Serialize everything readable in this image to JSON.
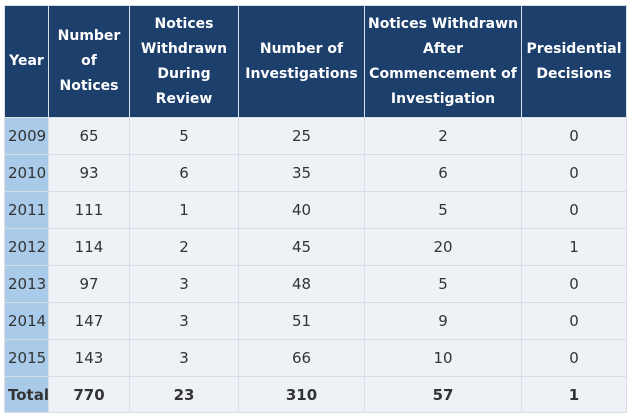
{
  "table": {
    "header": [
      "Year",
      "Number of Notices",
      "Notices Withdrawn During Review",
      "Number of Investigations",
      "Notices Withdrawn After Commencement of Investigation",
      "Presidential Decisions"
    ],
    "rows": [
      [
        2009,
        65,
        5,
        25,
        2,
        0
      ],
      [
        2010,
        93,
        6,
        35,
        6,
        0
      ],
      [
        2011,
        111,
        1,
        40,
        5,
        0
      ],
      [
        2012,
        114,
        2,
        45,
        20,
        1
      ],
      [
        2013,
        97,
        3,
        48,
        5,
        0
      ],
      [
        2014,
        147,
        3,
        51,
        9,
        0
      ],
      [
        2015,
        143,
        3,
        66,
        10,
        0
      ]
    ],
    "total": [
      "Total",
      770,
      23,
      310,
      57,
      1
    ]
  }
}
